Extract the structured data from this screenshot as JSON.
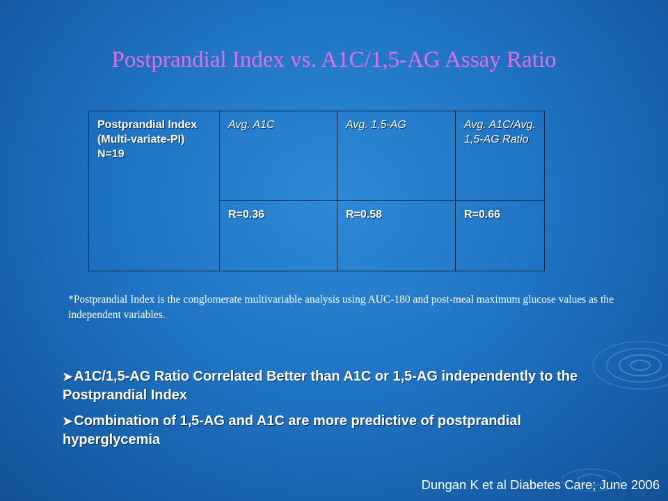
{
  "title": "Postprandial Index vs. A1C/1,5-AG Assay Ratio",
  "table": {
    "row_header": "Postprandial Index (Multi-variate-PI) N=19",
    "columns": [
      "Avg. A1C",
      "Avg. 1,5-AG",
      "Avg. A1C/Avg. 1,5-AG Ratio"
    ],
    "values": [
      "R=0.36",
      "R=0.58",
      "R=0.66"
    ],
    "accent_color": "#d9702f"
  },
  "footnote": "*Postprandial Index is the conglomerate multivariable analysis using AUC-180 and post-meal maximum glucose values as the independent variables.",
  "bullets": [
    "A1C/1,5-AG Ratio Correlated Better than A1C or 1,5-AG independently to the Postprandial Index",
    "Combination of 1,5-AG and A1C are more predictive of postprandial hyperglycemia"
  ],
  "bullet_icon": "arrow-bullet-icon",
  "citation": "Dungan K et al Diabetes Care; June 2006"
}
